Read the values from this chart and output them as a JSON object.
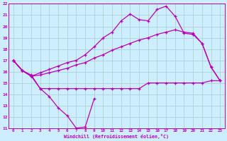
{
  "ylim": [
    11,
    22
  ],
  "xlim": [
    -0.5,
    23.5
  ],
  "yticks": [
    11,
    12,
    13,
    14,
    15,
    16,
    17,
    18,
    19,
    20,
    21,
    22
  ],
  "xticks": [
    0,
    1,
    2,
    3,
    4,
    5,
    6,
    7,
    8,
    9,
    10,
    11,
    12,
    13,
    14,
    15,
    16,
    17,
    18,
    19,
    20,
    21,
    22,
    23
  ],
  "background_color": "#cceeff",
  "grid_color": "#aacccc",
  "line_color": "#bb00bb",
  "xlabel": "Windchill (Refroidissement éolien,°C)",
  "curve_dip_x": [
    0,
    1,
    2,
    3,
    4,
    5,
    6,
    7,
    8,
    9
  ],
  "curve_dip_y": [
    17.0,
    16.1,
    15.7,
    14.5,
    13.8,
    12.8,
    12.1,
    11.0,
    11.1,
    13.6
  ],
  "curve_flat_x": [
    0,
    1,
    2,
    3,
    4,
    5,
    6,
    7,
    8,
    9,
    10,
    11,
    12,
    13,
    14,
    15,
    16,
    17,
    18,
    19,
    20,
    21,
    22,
    23
  ],
  "curve_flat_y": [
    17.0,
    16.1,
    15.6,
    14.5,
    14.5,
    14.5,
    14.5,
    14.5,
    14.5,
    14.5,
    14.5,
    14.5,
    14.5,
    14.5,
    14.5,
    15.0,
    15.0,
    15.0,
    15.0,
    15.0,
    15.0,
    15.0,
    15.2,
    15.2
  ],
  "curve_top_x": [
    0,
    1,
    2,
    3,
    4,
    5,
    6,
    7,
    8,
    9,
    10,
    11,
    12,
    13,
    14,
    15,
    16,
    17,
    18,
    19,
    20,
    21,
    22,
    23
  ],
  "curve_top_y": [
    17.0,
    16.1,
    15.6,
    15.9,
    16.2,
    16.5,
    16.8,
    17.0,
    17.5,
    18.2,
    19.0,
    19.5,
    20.5,
    21.1,
    20.6,
    20.5,
    21.5,
    21.8,
    20.9,
    19.4,
    19.3,
    18.5,
    16.4,
    15.2
  ],
  "curve_mid_x": [
    0,
    1,
    2,
    3,
    4,
    5,
    6,
    7,
    8,
    9,
    10,
    11,
    12,
    13,
    14,
    15,
    16,
    17,
    18,
    19,
    20,
    21,
    22,
    23
  ],
  "curve_mid_y": [
    17.0,
    16.1,
    15.6,
    15.7,
    15.9,
    16.1,
    16.3,
    16.6,
    16.8,
    17.2,
    17.5,
    17.9,
    18.2,
    18.5,
    18.8,
    19.0,
    19.3,
    19.5,
    19.7,
    19.5,
    19.4,
    18.5,
    16.4,
    15.2
  ]
}
